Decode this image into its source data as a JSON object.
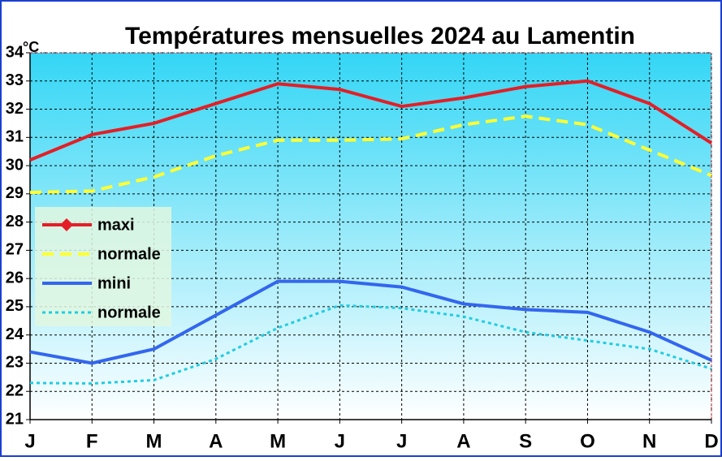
{
  "chart_data": {
    "type": "line",
    "title": "Températures mensuelles 2024 au Lamentin",
    "y_label": "°C",
    "categories": [
      "J",
      "F",
      "M",
      "A",
      "M",
      "J",
      "J",
      "A",
      "S",
      "O",
      "N",
      "D"
    ],
    "series": [
      {
        "name": "maxi",
        "color": "#e41e26",
        "dash": "solid",
        "marker": "diamond",
        "values": [
          30.2,
          31.1,
          31.5,
          32.2,
          32.9,
          32.7,
          32.1,
          32.4,
          32.8,
          33.0,
          32.2,
          30.8
        ]
      },
      {
        "name": "normale",
        "color": "#ffff33",
        "dash": "dashed",
        "values": [
          29.05,
          29.1,
          29.6,
          30.35,
          30.9,
          30.9,
          30.95,
          31.45,
          31.75,
          31.45,
          30.55,
          29.65
        ]
      },
      {
        "name": "mini",
        "color": "#3366ee",
        "dash": "solid",
        "values": [
          23.4,
          23.0,
          23.5,
          24.7,
          25.9,
          25.9,
          25.7,
          25.1,
          24.9,
          24.8,
          24.1,
          23.1
        ]
      },
      {
        "name": "normale",
        "color": "#22cce0",
        "dash": "dotted",
        "values": [
          22.3,
          22.28,
          22.4,
          23.15,
          24.25,
          25.05,
          24.95,
          24.65,
          24.1,
          23.8,
          23.5,
          22.8
        ]
      }
    ],
    "ylim": [
      21,
      34
    ],
    "yticks": [
      21,
      22,
      23,
      24,
      25,
      26,
      27,
      28,
      29,
      30,
      31,
      32,
      33,
      34
    ],
    "grid": true
  }
}
